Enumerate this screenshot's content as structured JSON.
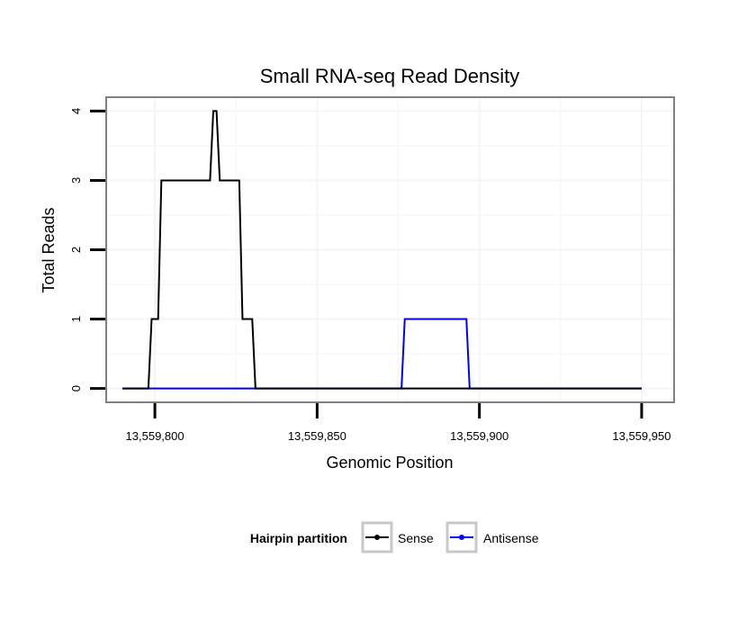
{
  "chart_data": {
    "type": "line",
    "title": "Small RNA-seq Read Density",
    "xlabel": "Genomic Position",
    "ylabel": "Total Reads",
    "xlim": [
      13559785,
      13559960
    ],
    "ylim": [
      -0.2,
      4.2
    ],
    "xticks": [
      13559800,
      13559850,
      13559900,
      13559950
    ],
    "xtick_labels": [
      "13,559,800",
      "13,559,850",
      "13,559,900",
      "13,559,950"
    ],
    "yticks": [
      0,
      1,
      2,
      3,
      4
    ],
    "ytick_labels": [
      "0",
      "1",
      "2",
      "3",
      "4"
    ],
    "grid": true,
    "legend": {
      "title": "Hairpin partition",
      "position": "bottom",
      "entries": [
        "Sense",
        "Antisense"
      ]
    },
    "series": [
      {
        "name": "Antisense",
        "color": "#0000ff",
        "x": [
          13559790,
          13559876,
          13559877,
          13559896,
          13559897,
          13559950
        ],
        "y": [
          0,
          0,
          1,
          1,
          0,
          0
        ]
      },
      {
        "name": "Sense",
        "color": "#000000",
        "x": [
          13559790,
          13559798,
          13559799,
          13559801,
          13559802,
          13559817,
          13559818,
          13559819,
          13559820,
          13559826,
          13559827,
          13559830,
          13559831,
          13559950
        ],
        "y": [
          0,
          0,
          1,
          1,
          3,
          3,
          4,
          4,
          3,
          3,
          1,
          1,
          0,
          0
        ]
      }
    ]
  }
}
